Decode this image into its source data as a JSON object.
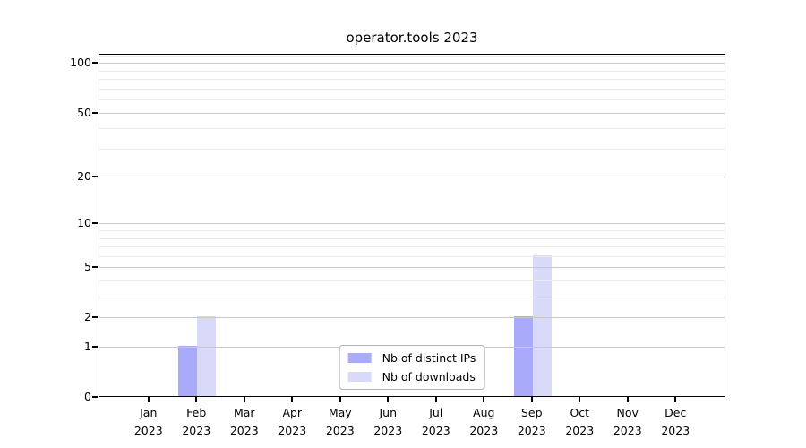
{
  "chart_data": {
    "type": "bar",
    "title": "operator.tools 2023",
    "categories": [
      "Jan",
      "Feb",
      "Mar",
      "Apr",
      "May",
      "Jun",
      "Jul",
      "Aug",
      "Sep",
      "Oct",
      "Nov",
      "Dec"
    ],
    "category_year": "2023",
    "series": [
      {
        "name": "Nb of distinct IPs",
        "color": "#aaaafa",
        "values": [
          0,
          1,
          0,
          0,
          0,
          0,
          0,
          0,
          2,
          0,
          0,
          0
        ]
      },
      {
        "name": "Nb of downloads",
        "color": "#d9d9fa",
        "values": [
          0,
          2,
          0,
          0,
          0,
          0,
          0,
          0,
          6,
          0,
          0,
          0
        ]
      }
    ],
    "yscale": "log1p",
    "ylim": [
      0,
      114
    ],
    "y_ticks": [
      0,
      1,
      2,
      5,
      10,
      20,
      50,
      100
    ],
    "y_minor_gridlines": [
      3,
      4,
      6,
      7,
      8,
      9,
      30,
      40,
      60,
      70,
      80,
      90,
      110
    ],
    "grid": "on",
    "legend_position": "lower center",
    "xlabel": "",
    "ylabel": ""
  },
  "colors": {
    "background": "#ffffff",
    "axis": "#000000",
    "major_grid": "#c9c9c9",
    "minor_grid": "#ebebeb",
    "legend_border": "#b3b3b3",
    "text": "#000000"
  }
}
